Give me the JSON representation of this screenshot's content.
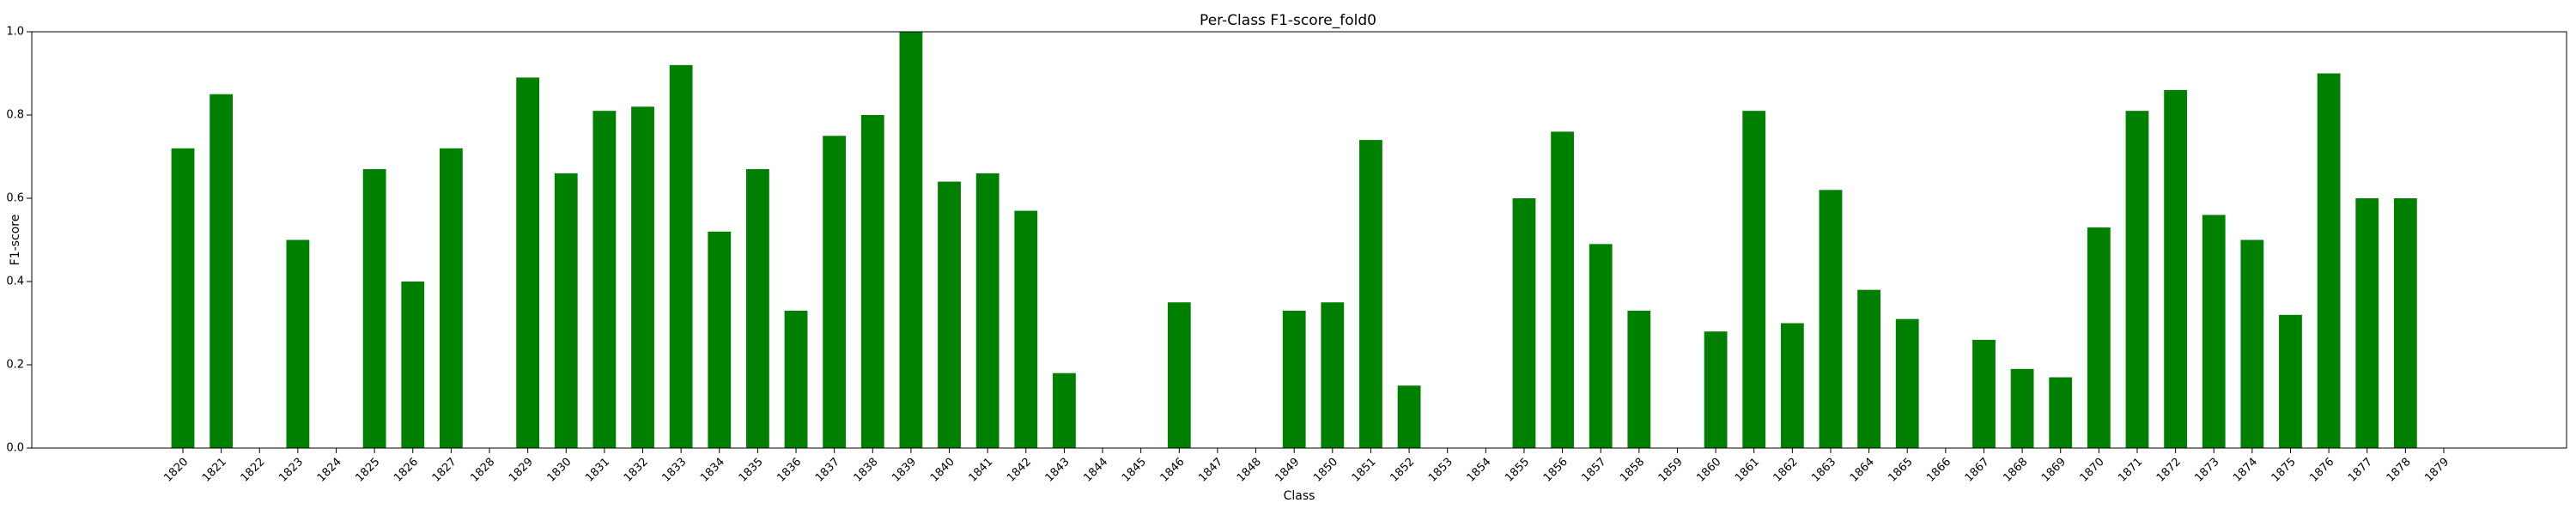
{
  "chart_data": {
    "type": "bar",
    "title": "Per-Class F1-score_fold0",
    "xlabel": "Class",
    "ylabel": "F1-score",
    "ylim": [
      0,
      1.0
    ],
    "yticks": [
      "0.0",
      "0.2",
      "0.4",
      "0.6",
      "0.8",
      "1.0"
    ],
    "grid": false,
    "bar_color": "#008000",
    "categories": [
      "1820",
      "1821",
      "1822",
      "1823",
      "1824",
      "1825",
      "1826",
      "1827",
      "1828",
      "1829",
      "1830",
      "1831",
      "1832",
      "1833",
      "1834",
      "1835",
      "1836",
      "1837",
      "1838",
      "1839",
      "1840",
      "1841",
      "1842",
      "1843",
      "1844",
      "1845",
      "1846",
      "1847",
      "1848",
      "1849",
      "1850",
      "1851",
      "1852",
      "1853",
      "1854",
      "1855",
      "1856",
      "1857",
      "1858",
      "1859",
      "1860",
      "1861",
      "1862",
      "1863",
      "1864",
      "1865",
      "1866",
      "1867",
      "1868",
      "1869",
      "1870",
      "1871",
      "1872",
      "1873",
      "1874",
      "1875",
      "1876",
      "1877",
      "1878",
      "1879"
    ],
    "values": [
      0.72,
      0.85,
      0,
      0.5,
      0,
      0.67,
      0.4,
      0.72,
      0,
      0.89,
      0.66,
      0.81,
      0.82,
      0.92,
      0.52,
      0.67,
      0.33,
      0.75,
      0.8,
      1.0,
      0.64,
      0.66,
      0.57,
      0.18,
      0,
      0,
      0.35,
      0,
      0,
      0.33,
      0.35,
      0.74,
      0.15,
      0,
      0,
      0.6,
      0.76,
      0.49,
      0.33,
      0,
      0.28,
      0.81,
      0.3,
      0.62,
      0.38,
      0.31,
      0,
      0.26,
      0.19,
      0.17,
      0.53,
      0.81,
      0.86,
      0.56,
      0.5,
      0.32,
      0.9,
      0.6,
      0.6,
      0
    ]
  }
}
